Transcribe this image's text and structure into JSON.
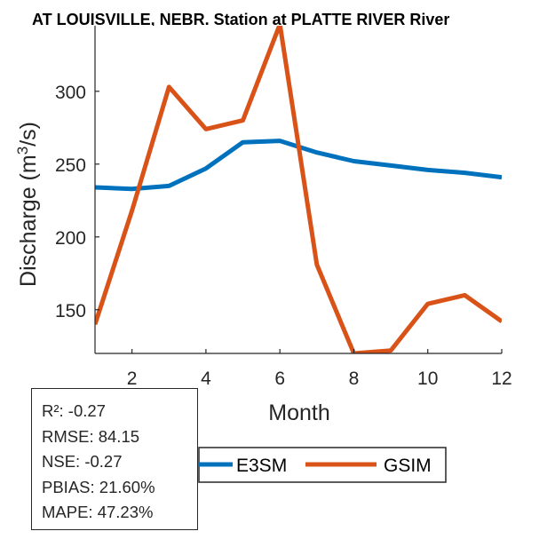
{
  "chart_data": {
    "type": "line",
    "title": "AT LOUISVILLE, NEBR.  Station at  PLATTE RIVER  River",
    "xlabel": "Month",
    "ylabel": "Discharge (m3/s)",
    "ylabel_parts": {
      "before": "Discharge (m",
      "sup": "3",
      "after": "/s)"
    },
    "xlim": [
      1,
      12
    ],
    "ylim": [
      120,
      345
    ],
    "xticks": [
      2,
      4,
      6,
      8,
      10,
      12
    ],
    "yticks": [
      150,
      200,
      250,
      300
    ],
    "x": [
      1,
      2,
      3,
      4,
      5,
      6,
      7,
      8,
      9,
      10,
      11,
      12
    ],
    "series": [
      {
        "name": "E3SM",
        "color": "#0072BD",
        "values": [
          234,
          233,
          235,
          247,
          265,
          266,
          258,
          252,
          249,
          246,
          244,
          241
        ]
      },
      {
        "name": "GSIM",
        "color": "#D95319",
        "values": [
          140,
          218,
          303,
          274,
          280,
          346,
          181,
          120,
          122,
          154,
          160,
          142
        ]
      }
    ],
    "legend_position": "bottom"
  },
  "stats": {
    "r2": "R²: -0.27",
    "rmse": "RMSE: 84.15",
    "nse": "NSE: -0.27",
    "pbias": "PBIAS: 21.60%",
    "mape": "MAPE: 47.23%"
  }
}
